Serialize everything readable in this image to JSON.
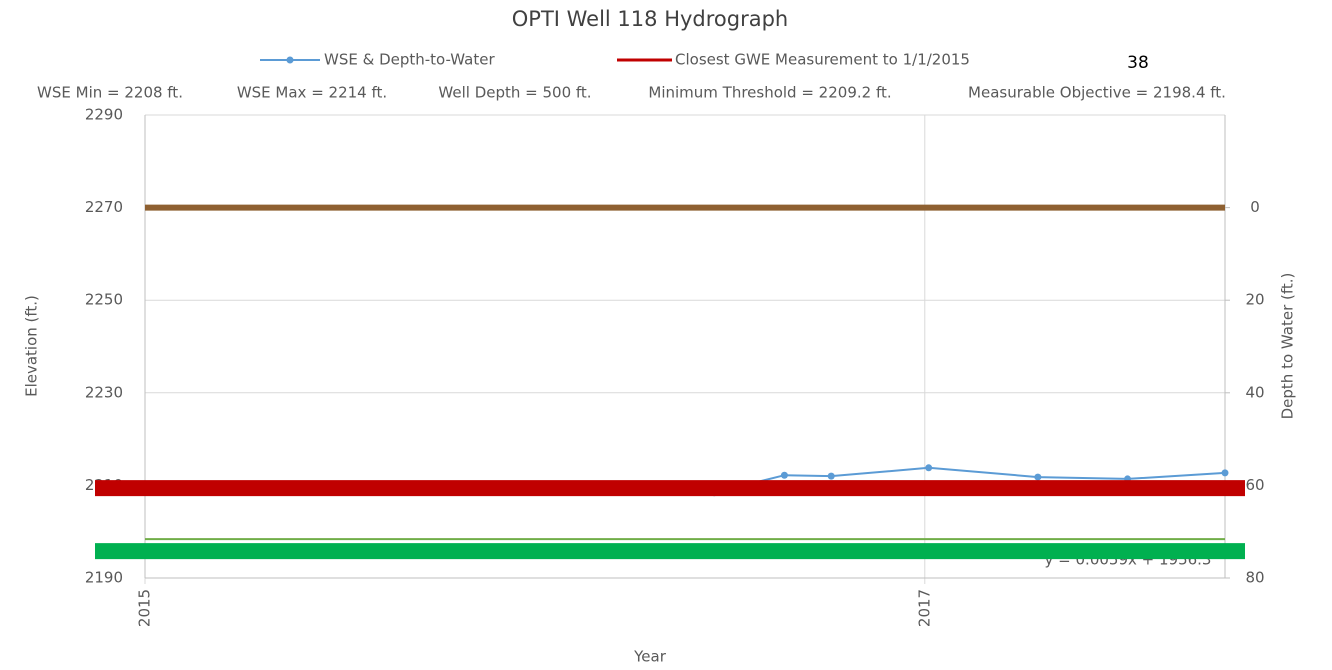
{
  "chart_data": {
    "type": "line",
    "title": "OPTI Well 118 Hydrograph",
    "page_number": "38",
    "stats": [
      "WSE Min = 2208 ft.",
      "WSE Max = 2214 ft.",
      "Well Depth = 500 ft.",
      "Minimum Threshold = 2209.2 ft.",
      "Measurable Objective = 2198.4 ft."
    ],
    "trendline_label": "y = 0.0059x + 1956.3",
    "x_label": "Year",
    "y_label": "Elevation (ft.)",
    "y2_label": "Depth to Water (ft.)",
    "x": [
      2016.46,
      2016.64,
      2016.76,
      2017.01,
      2017.29,
      2017.52,
      2017.77
    ],
    "series": [
      {
        "name": "WSE & Depth-to-Water",
        "color": "#5b9bd5",
        "values": [
          2208.4,
          2212.2,
          2212.0,
          2213.8,
          2211.8,
          2211.4,
          2212.7
        ]
      }
    ],
    "reference_lines": [
      {
        "value": 2270,
        "color": "#8e6031"
      },
      {
        "value": 2198.4,
        "color": "#70ad47"
      },
      {
        "name": "Closest GWE Measurement to 1/1/2015",
        "value": 2209.4,
        "color": "#c00000"
      },
      {
        "value": 2195.8,
        "color": "#00b050"
      }
    ],
    "xlim": [
      2015,
      2017.77
    ],
    "xticks": [
      2015,
      2017
    ],
    "ylim": [
      2190,
      2290
    ],
    "yticks": [
      2190,
      2210,
      2230,
      2250,
      2270,
      2290
    ],
    "y2lim": [
      80,
      -20
    ],
    "y2ticks": [
      0,
      20,
      40,
      60,
      80
    ],
    "grid": true
  }
}
